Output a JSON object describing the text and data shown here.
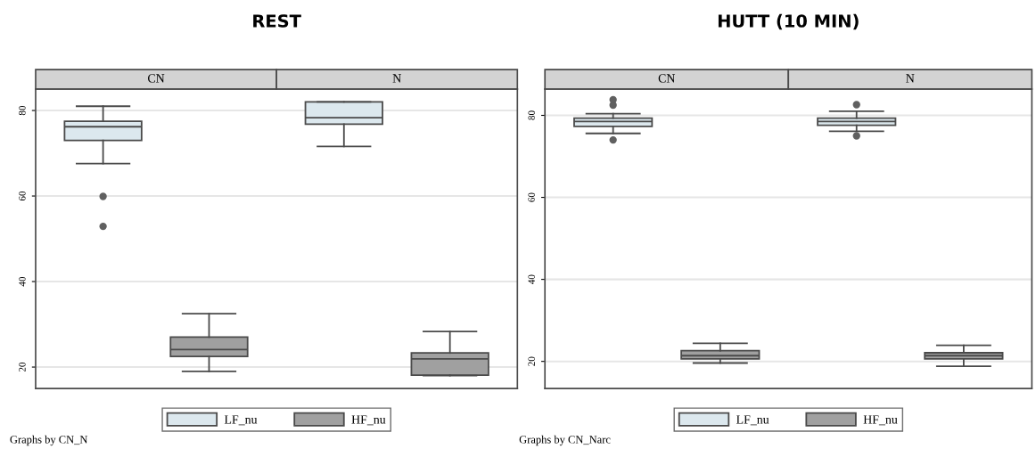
{
  "chart_data": [
    {
      "type": "box",
      "title": "REST",
      "categories": [
        "CN",
        "N"
      ],
      "ylim": [
        15,
        85
      ],
      "yticks": [
        20,
        40,
        60,
        80
      ],
      "grid": "y",
      "legend": "bottom",
      "annotations": [
        "Graphs by CN_N"
      ],
      "series": [
        {
          "name": "LF_nu",
          "color": "#dce8ee",
          "boxes": [
            {
              "low": 67.6,
              "q1": 73.0,
              "median": 76.2,
              "q3": 77.5,
              "high": 81.0,
              "outliers": [
                59.9,
                52.9
              ]
            },
            {
              "low": 71.6,
              "q1": 76.8,
              "median": 78.3,
              "q3": 82.0,
              "high": 82.0
            }
          ]
        },
        {
          "name": "HF_nu",
          "color": "#a0a0a0",
          "boxes": [
            {
              "low": 19.0,
              "q1": 22.5,
              "median": 24.1,
              "q3": 27.0,
              "high": 32.5
            },
            {
              "low": 18.0,
              "q1": 18.1,
              "median": 21.9,
              "q3": 23.3,
              "high": 28.3
            }
          ]
        }
      ]
    },
    {
      "type": "box",
      "title": "HUTT (10 MIN)",
      "categories": [
        "CN",
        "N"
      ],
      "ylim": [
        13.4,
        86.4
      ],
      "yticks": [
        20,
        40,
        60,
        80
      ],
      "grid": "y",
      "legend": "bottom",
      "annotations": [
        "Graphs by CN_Narc"
      ],
      "series": [
        {
          "name": "LF_nu",
          "color": "#dce8ee",
          "boxes": [
            {
              "low": 75.6,
              "q1": 77.3,
              "median": 78.5,
              "q3": 79.3,
              "high": 80.4,
              "outliers": [
                83.8,
                82.5,
                74.0
              ]
            },
            {
              "low": 76.1,
              "q1": 77.6,
              "median": 78.5,
              "q3": 79.3,
              "high": 81.0,
              "outliers": [
                82.6,
                75.0
              ]
            }
          ]
        },
        {
          "name": "HF_nu",
          "color": "#a0a0a0",
          "boxes": [
            {
              "low": 19.6,
              "q1": 20.6,
              "median": 21.4,
              "q3": 22.6,
              "high": 24.4
            },
            {
              "low": 18.8,
              "q1": 20.6,
              "median": 21.4,
              "q3": 22.1,
              "high": 23.9
            }
          ]
        }
      ]
    }
  ]
}
